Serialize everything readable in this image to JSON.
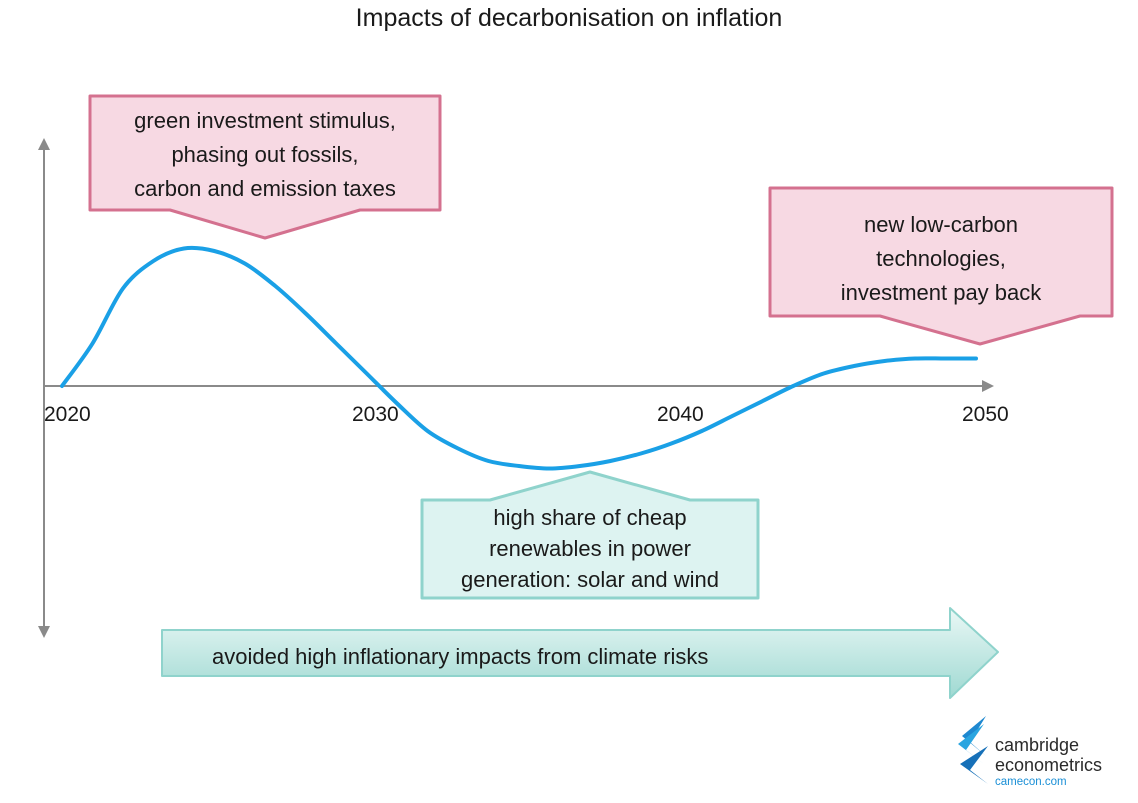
{
  "title": "Impacts of decarbonisation on inflation",
  "callouts": {
    "top_left": [
      "green investment stimulus,",
      "phasing out fossils,",
      "carbon and emission taxes"
    ],
    "top_right": [
      "new low-carbon",
      "technologies,",
      "investment pay back"
    ],
    "bottom": [
      "high share of cheap",
      "renewables in power",
      "generation: solar and wind"
    ]
  },
  "arrow_label": "avoided high inflationary impacts from climate risks",
  "logo": {
    "line1": "cambridge",
    "line2": "econometrics",
    "url": "camecon.com"
  },
  "colors": {
    "curve": "#1aa0e6",
    "pink_fill": "#f7d9e3",
    "pink_border": "#d4718f",
    "teal_fill": "#ddf3f1",
    "teal_border": "#8fd3cc",
    "axis": "#8a8a8a"
  },
  "chart_data": {
    "type": "line",
    "xticks": [
      "2020",
      "2030",
      "2040",
      "2050"
    ],
    "x": [
      2020,
      2021,
      2022,
      2023,
      2024,
      2025,
      2026,
      2027,
      2028,
      2029,
      2030,
      2031,
      2032,
      2033,
      2034,
      2035,
      2036,
      2037,
      2038,
      2039,
      2040,
      2041,
      2042,
      2043,
      2044,
      2045,
      2046,
      2047,
      2048,
      2049,
      2050
    ],
    "y": [
      0,
      0.17,
      0.39,
      0.5,
      0.55,
      0.54,
      0.49,
      0.4,
      0.29,
      0.17,
      0.05,
      -0.07,
      -0.18,
      -0.25,
      -0.3,
      -0.32,
      -0.33,
      -0.32,
      -0.3,
      -0.27,
      -0.23,
      -0.18,
      -0.12,
      -0.06,
      0.0,
      0.05,
      0.08,
      0.1,
      0.11,
      0.11,
      0.11
    ],
    "xlim": [
      2020,
      2051
    ],
    "ylim": [
      -1,
      1
    ],
    "grid": false,
    "legend": "none"
  }
}
